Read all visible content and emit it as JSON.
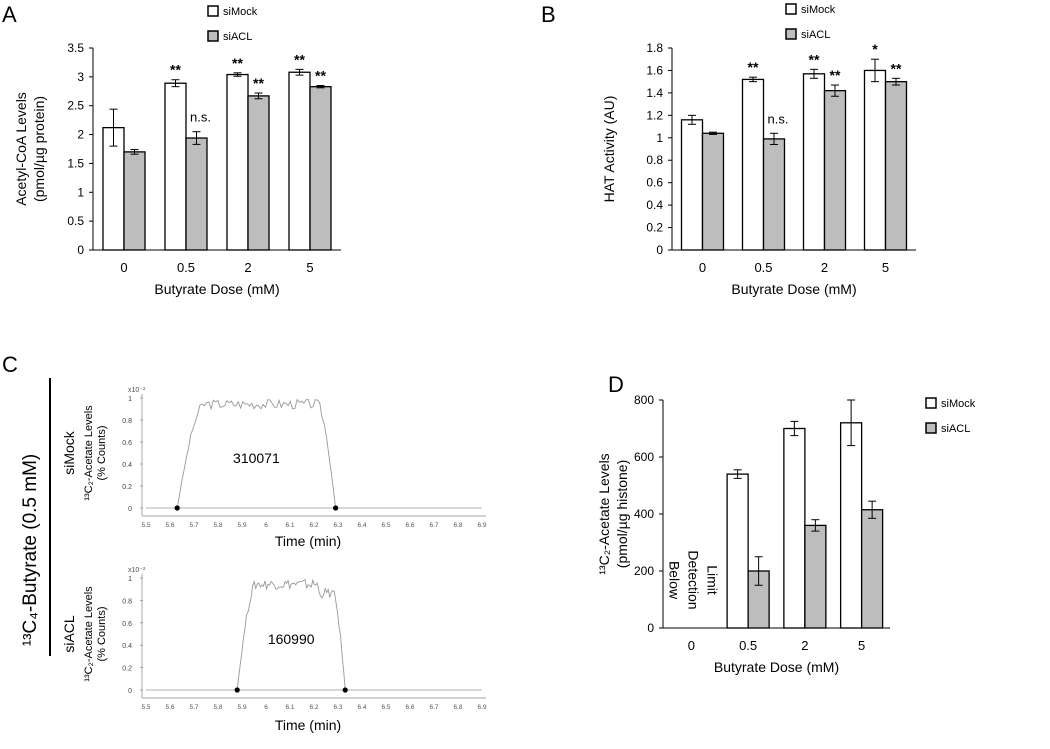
{
  "panel_labels": [
    "A",
    "B",
    "C",
    "D"
  ],
  "legend": {
    "mock": "siMock",
    "acl": "siACL"
  },
  "colors": {
    "mock": "#ffffff",
    "acl": "#bdbdbd",
    "trace": "#999999",
    "axis": "#888888"
  },
  "chart_data": [
    {
      "id": "A",
      "type": "bar",
      "categories": [
        "0",
        "0.5",
        "2",
        "5"
      ],
      "series": [
        {
          "name": "siMock",
          "values": [
            2.12,
            2.89,
            3.04,
            3.08
          ],
          "errors": [
            0.32,
            0.06,
            0.03,
            0.05
          ],
          "sig": [
            "",
            "**",
            "**",
            "**"
          ]
        },
        {
          "name": "siACL",
          "values": [
            1.7,
            1.94,
            2.67,
            2.83
          ],
          "errors": [
            0.04,
            0.11,
            0.05,
            0.02
          ],
          "sig": [
            "",
            "n.s.",
            "**",
            "**"
          ]
        }
      ],
      "ylabel": [
        "Acetyl-CoA Levels",
        "(pmol/µg protein)"
      ],
      "xlabel": "Butyrate Dose (mM)",
      "ylim": [
        0,
        3.5
      ],
      "yticks": [
        "0",
        "0.5",
        "1",
        "1.5",
        "2",
        "2.5",
        "3",
        "3.5"
      ]
    },
    {
      "id": "B",
      "type": "bar",
      "categories": [
        "0",
        "0.5",
        "2",
        "5"
      ],
      "series": [
        {
          "name": "siMock",
          "values": [
            1.16,
            1.52,
            1.57,
            1.6
          ],
          "errors": [
            0.04,
            0.02,
            0.04,
            0.1
          ],
          "sig": [
            "",
            "**",
            "**",
            "*"
          ]
        },
        {
          "name": "siACL",
          "values": [
            1.04,
            0.99,
            1.42,
            1.5
          ],
          "errors": [
            0.01,
            0.05,
            0.05,
            0.03
          ],
          "sig": [
            "",
            "n.s.",
            "**",
            "**"
          ]
        }
      ],
      "ylabel": [
        "HAT Activity (AU)"
      ],
      "xlabel": "Butyrate Dose (mM)",
      "ylim": [
        0,
        1.8
      ],
      "yticks": [
        "0",
        "0.2",
        "0.4",
        "0.6",
        "0.8",
        "1",
        "1.2",
        "1.4",
        "1.6",
        "1.8"
      ]
    },
    {
      "id": "D",
      "type": "bar",
      "categories": [
        "0",
        "0.5",
        "2",
        "5"
      ],
      "series": [
        {
          "name": "siMock",
          "values": [
            null,
            540,
            700,
            720
          ],
          "errors": [
            0,
            15,
            25,
            80
          ]
        },
        {
          "name": "siACL",
          "values": [
            null,
            200,
            360,
            415
          ],
          "errors": [
            0,
            50,
            20,
            30
          ]
        }
      ],
      "annotation": [
        "Below",
        "Detection",
        "Limit"
      ],
      "ylabel": [
        "¹³C₂-Acetate Levels",
        "(pmol/µg histone)"
      ],
      "xlabel": "Butyrate Dose (mM)",
      "ylim": [
        0,
        800
      ],
      "yticks": [
        "0",
        "200",
        "400",
        "600",
        "800"
      ]
    }
  ],
  "panel_c": {
    "side_label": "¹³C₄-Butyrate  (0.5 mM)",
    "scale_label": "x10⁻²",
    "ylabel": [
      "¹³C₂-Acetate Levels",
      "(% Counts)"
    ],
    "yticks": [
      "0",
      "0.2",
      "0.4",
      "0.6",
      "0.8",
      "1"
    ],
    "xticks": [
      "5.5",
      "5.6",
      "5.7",
      "5.8",
      "5.9",
      "6",
      "6.1",
      "6.2",
      "6.3",
      "6.4",
      "6.5",
      "6.6",
      "6.7",
      "6.8",
      "6.9"
    ],
    "xlabel": "Time (min)",
    "traces": [
      {
        "name": "siMock",
        "area": "310071",
        "start": 5.63,
        "end": 6.29
      },
      {
        "name": "siACL",
        "area": "160990",
        "start": 5.88,
        "end": 6.33
      }
    ]
  }
}
